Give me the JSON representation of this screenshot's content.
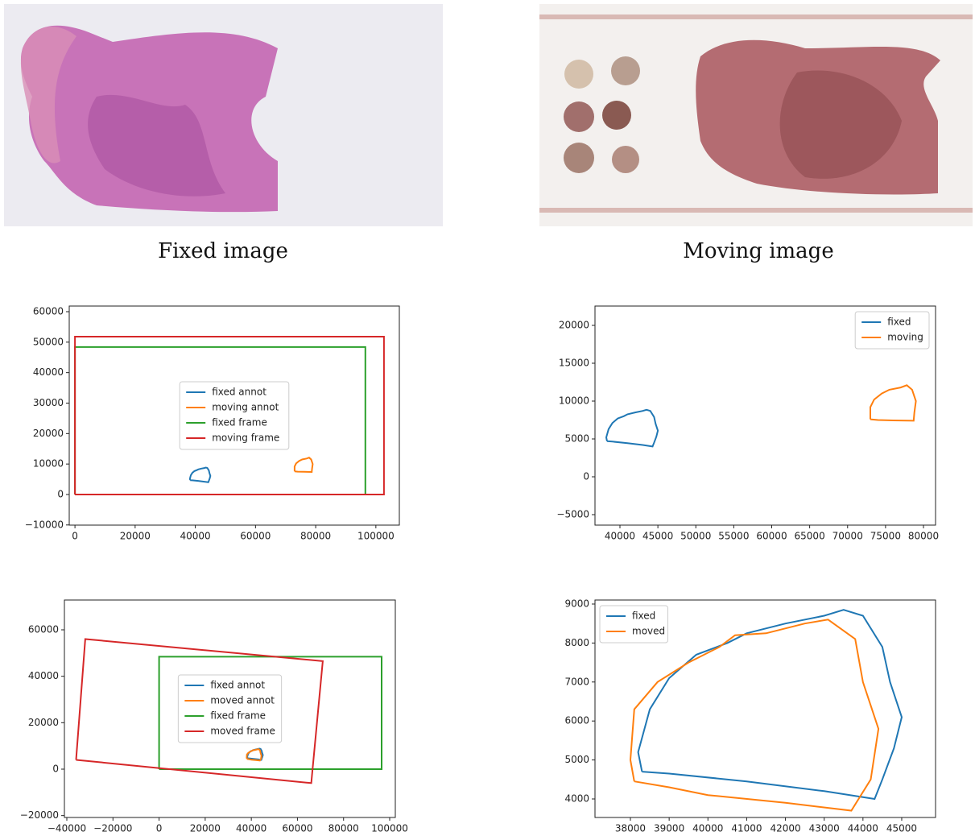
{
  "images": [
    {
      "caption": "Fixed image"
    },
    {
      "caption": "Moving image"
    }
  ],
  "chart_data": [
    {
      "type": "line",
      "xlim": [
        -1900,
        107800
      ],
      "ylim": [
        -10050,
        61850
      ],
      "xticks": [
        0,
        20000,
        40000,
        60000,
        80000,
        100000
      ],
      "yticks": [
        {
          "value": -10000,
          "label": "−10000"
        },
        0,
        10000,
        20000,
        30000,
        40000,
        50000,
        60000
      ],
      "legend": "center",
      "series": [
        {
          "name": "fixed annot",
          "color": "#1f77b4",
          "x": [
            38300,
            38200,
            38500,
            39000,
            39700,
            40500,
            41000,
            42000,
            43000,
            43500,
            44000,
            44500,
            44700,
            45000,
            44800,
            44500,
            44300,
            43000,
            41000,
            39000,
            38300
          ],
          "y": [
            4700,
            5200,
            6300,
            7100,
            7700,
            8000,
            8250,
            8500,
            8700,
            8850,
            8700,
            7900,
            7000,
            6100,
            5300,
            4500,
            4000,
            4200,
            4450,
            4650,
            4700
          ]
        },
        {
          "name": "moving annot",
          "color": "#ff7f0e",
          "x": [
            73000,
            73000,
            73500,
            74500,
            75500,
            77000,
            77800,
            78500,
            79000,
            78800,
            78700,
            76000,
            74000,
            73000
          ],
          "y": [
            7600,
            9200,
            10200,
            11000,
            11500,
            11800,
            12100,
            11500,
            10000,
            8500,
            7400,
            7450,
            7500,
            7600
          ]
        },
        {
          "name": "fixed frame",
          "color": "#2ca02c",
          "x": [
            0,
            96500,
            96500,
            0,
            0
          ],
          "y": [
            0,
            0,
            48400,
            48400,
            0
          ]
        },
        {
          "name": "moving frame",
          "color": "#d62728",
          "x": [
            0,
            102700,
            102700,
            0,
            0
          ],
          "y": [
            0,
            0,
            51800,
            51800,
            0
          ]
        }
      ]
    },
    {
      "type": "line",
      "xlim": [
        36711,
        81590
      ],
      "ylim": [
        -6383,
        22553
      ],
      "xticks": [
        40000,
        45000,
        50000,
        55000,
        60000,
        65000,
        70000,
        75000,
        80000
      ],
      "yticks": [
        {
          "value": -5000,
          "label": "−5000"
        },
        0,
        5000,
        10000,
        15000,
        20000
      ],
      "legend": "upper right",
      "series": [
        {
          "name": "fixed",
          "color": "#1f77b4",
          "x": [
            38300,
            38200,
            38500,
            39000,
            39700,
            40500,
            41000,
            42000,
            43000,
            43500,
            44000,
            44500,
            44700,
            45000,
            44800,
            44500,
            44300,
            43000,
            41000,
            39000,
            38300
          ],
          "y": [
            4700,
            5200,
            6300,
            7100,
            7700,
            8000,
            8250,
            8500,
            8700,
            8850,
            8700,
            7900,
            7000,
            6100,
            5300,
            4500,
            4000,
            4200,
            4450,
            4650,
            4700
          ]
        },
        {
          "name": "moving",
          "color": "#ff7f0e",
          "x": [
            73000,
            73000,
            73500,
            74500,
            75500,
            77000,
            77800,
            78500,
            79000,
            78800,
            78700,
            76000,
            74000,
            73000
          ],
          "y": [
            7600,
            9200,
            10200,
            11000,
            11500,
            11800,
            12100,
            11500,
            10000,
            8500,
            7400,
            7450,
            7500,
            7600
          ]
        }
      ]
    },
    {
      "type": "line",
      "xlim": [
        -41050,
        102440
      ],
      "ylim": [
        -20810,
        72830
      ],
      "xticks": [
        {
          "value": -40000,
          "label": "−40000"
        },
        {
          "value": -20000,
          "label": "−20000"
        },
        0,
        20000,
        40000,
        60000,
        80000,
        100000
      ],
      "yticks": [
        {
          "value": -20000,
          "label": "−20000"
        },
        0,
        20000,
        40000,
        60000
      ],
      "legend": "center",
      "series": [
        {
          "name": "fixed annot",
          "color": "#1f77b4",
          "x": [
            38300,
            38200,
            38500,
            39000,
            39700,
            40500,
            41000,
            42000,
            43000,
            43500,
            44000,
            44500,
            44700,
            45000,
            44800,
            44500,
            44300,
            43000,
            41000,
            39000,
            38300
          ],
          "y": [
            4700,
            5200,
            6300,
            7100,
            7700,
            8000,
            8250,
            8500,
            8700,
            8850,
            8700,
            7900,
            7000,
            6100,
            5300,
            4500,
            4000,
            4200,
            4450,
            4650,
            4700
          ]
        },
        {
          "name": "moved annot",
          "color": "#ff7f0e",
          "x": [
            38100,
            38000,
            38100,
            38700,
            39500,
            40300,
            40700,
            41500,
            42500,
            43100,
            43800,
            44000,
            44400,
            44200,
            43700,
            42000,
            40000,
            39000,
            38100
          ],
          "y": [
            4450,
            5000,
            6300,
            7000,
            7500,
            7900,
            8200,
            8250,
            8500,
            8600,
            8100,
            7000,
            5800,
            4500,
            3700,
            3900,
            4100,
            4300,
            4450
          ]
        },
        {
          "name": "fixed frame",
          "color": "#2ca02c",
          "x": [
            0,
            96500,
            96500,
            0,
            0
          ],
          "y": [
            0,
            0,
            48400,
            48400,
            0
          ]
        },
        {
          "name": "moved frame",
          "color": "#d62728",
          "x": [
            -36000,
            66000,
            71000,
            -32000,
            -36000
          ],
          "y": [
            4000,
            -6000,
            46500,
            56000,
            4000
          ]
        }
      ]
    },
    {
      "type": "line",
      "xlim": [
        37086,
        45873
      ],
      "ylim": [
        3525,
        9103
      ],
      "xticks": [
        38000,
        39000,
        40000,
        41000,
        42000,
        43000,
        44000,
        45000
      ],
      "yticks": [
        4000,
        5000,
        6000,
        7000,
        8000,
        9000
      ],
      "legend": "upper left",
      "series": [
        {
          "name": "fixed",
          "color": "#1f77b4",
          "x": [
            38300,
            38200,
            38500,
            39000,
            39700,
            40500,
            41000,
            42000,
            43000,
            43500,
            44000,
            44500,
            44700,
            45000,
            44800,
            44500,
            44300,
            43000,
            41000,
            39000,
            38300
          ],
          "y": [
            4700,
            5200,
            6300,
            7100,
            7700,
            8000,
            8250,
            8500,
            8700,
            8850,
            8700,
            7900,
            7000,
            6100,
            5300,
            4500,
            4000,
            4200,
            4450,
            4650,
            4700
          ]
        },
        {
          "name": "moved",
          "color": "#ff7f0e",
          "x": [
            38100,
            38000,
            38100,
            38700,
            39500,
            40300,
            40700,
            41500,
            42500,
            43100,
            43800,
            44000,
            44400,
            44200,
            43700,
            42000,
            40000,
            39000,
            38100
          ],
          "y": [
            4450,
            5000,
            6300,
            7000,
            7500,
            7900,
            8200,
            8250,
            8500,
            8600,
            8100,
            7000,
            5800,
            4500,
            3700,
            3900,
            4100,
            4300,
            4450
          ]
        }
      ]
    }
  ]
}
